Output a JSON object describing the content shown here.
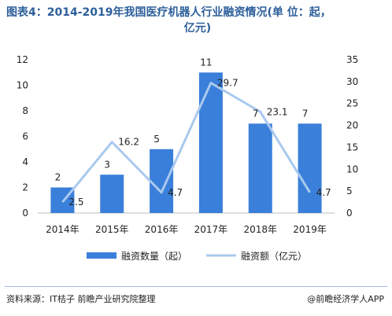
{
  "title_line1": "图表4：2014-2019年我国医疗机器人行业融资情况(单 位：起，",
  "title_line2": "亿元)",
  "source": "资料来源：IT桔子 前瞻产业研究院整理",
  "brand": "@前瞻经济学人APP",
  "colors": {
    "bar": "#3a7fd9",
    "line": "#a9c9ee",
    "axis": "#bfbfbf",
    "text": "#222222"
  },
  "chart_data": {
    "type": "bar+line",
    "categories": [
      "2014年",
      "2015年",
      "2016年",
      "2017年",
      "2018年",
      "2019年"
    ],
    "series": [
      {
        "name": "融资数量（起）",
        "type": "bar",
        "axis": "left",
        "values": [
          2,
          3,
          5,
          11,
          7,
          7
        ],
        "labels": [
          "2",
          "3",
          "5",
          "11",
          "7",
          "7"
        ]
      },
      {
        "name": "融资额（亿元）",
        "type": "line",
        "axis": "right",
        "values": [
          2.5,
          16.2,
          4.7,
          29.7,
          23.1,
          4.7
        ],
        "labels": [
          "2.5",
          "16.2",
          "4.7",
          "29.7",
          "23.1",
          "4.7"
        ]
      }
    ],
    "y_left": {
      "min": 0,
      "max": 12,
      "ticks": [
        0,
        2,
        4,
        6,
        8,
        10,
        12
      ]
    },
    "y_right": {
      "min": 0,
      "max": 35,
      "ticks": [
        0,
        5,
        10,
        15,
        20,
        25,
        30,
        35
      ]
    },
    "grid": false,
    "legend_position": "bottom"
  }
}
